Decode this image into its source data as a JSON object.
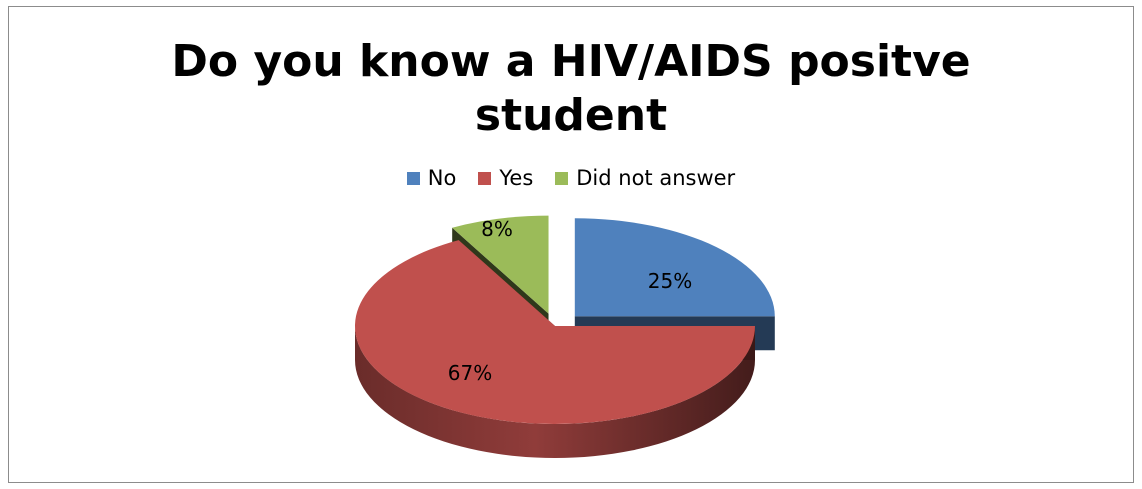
{
  "chart_data": {
    "type": "pie",
    "title_lines": [
      "Do you know a HIV/AIDS positve",
      "student"
    ],
    "categories": [
      "No",
      "Yes",
      "Did not answer"
    ],
    "values": [
      25,
      67,
      8
    ],
    "value_labels": [
      "25%",
      "67%",
      "8%"
    ],
    "colors": [
      "#4f81bd",
      "#c0504d",
      "#9bbb59"
    ],
    "legend_position": "top",
    "style": "3d-exploded"
  }
}
